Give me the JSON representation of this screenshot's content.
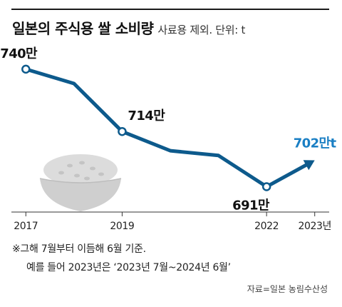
{
  "chart_data": {
    "type": "line",
    "title": "일본의 주식용 쌀 소비량",
    "subtitle": "사료용 제외. 단위: t",
    "x": [
      2017,
      2018,
      2019,
      2020,
      2021,
      2022,
      2023
    ],
    "x_tick_labels": [
      "2017",
      "2019",
      "2022",
      "2023년"
    ],
    "x_tick_values": [
      2017,
      2019,
      2022,
      2023
    ],
    "series": [
      {
        "values": [
          740,
          734,
          714,
          706,
          704,
          691,
          702
        ]
      }
    ],
    "data_labels": [
      {
        "x": 2017,
        "text": "740만"
      },
      {
        "x": 2019,
        "text": "714만"
      },
      {
        "x": 2022,
        "text": "691만"
      },
      {
        "x": 2023,
        "text": "702만t"
      }
    ],
    "ylim": [
      684,
      748
    ],
    "xlim": [
      2016.7,
      2023.3
    ],
    "grid": false,
    "colors": {
      "line": "#0d5a8c",
      "highlight": "#1a7fc4"
    }
  },
  "notes": {
    "line1": "※그해 7월부터 이듬해 6월 기준.",
    "line2": "예를 들어 2023년은 ‘2023년 7월~2024년 6월’"
  },
  "source": "자료=일본 농림수산성"
}
